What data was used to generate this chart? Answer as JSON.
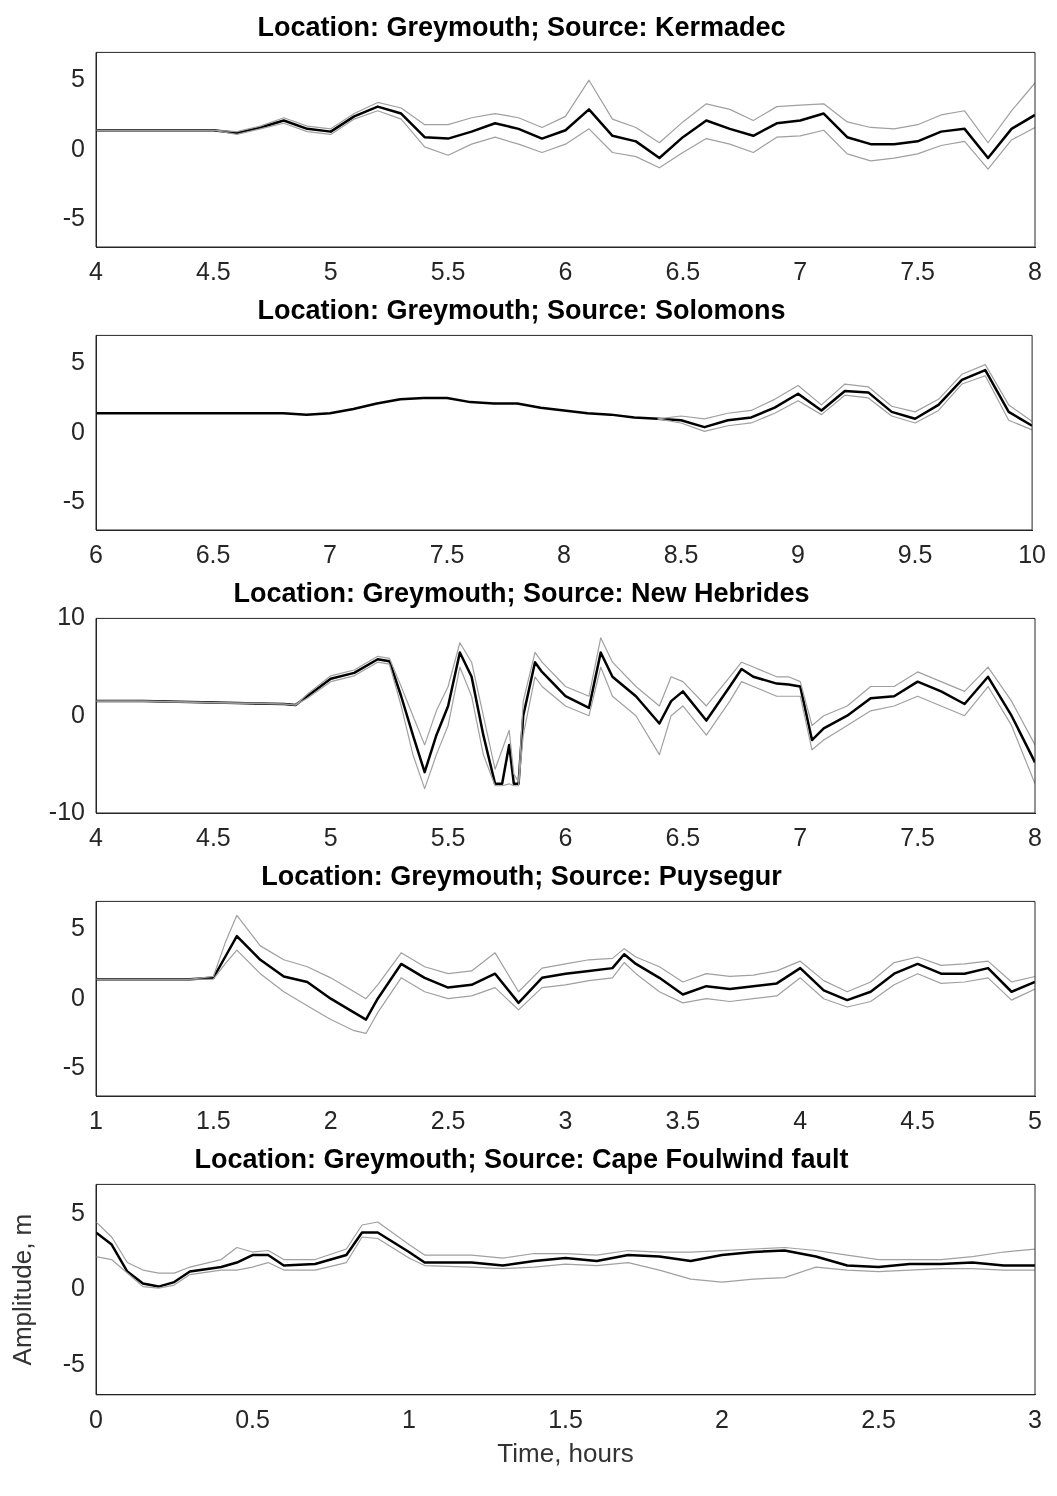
{
  "chart_data": [
    {
      "type": "line",
      "title": "Location: Greymouth; Source: Kermadec",
      "xlim": [
        4,
        8
      ],
      "xticks": [
        4,
        4.5,
        5,
        5.5,
        6,
        6.5,
        7,
        7.5,
        8
      ],
      "ylim": [
        -7,
        7
      ],
      "yticks": [
        -5,
        0,
        5
      ],
      "grid": false,
      "series": [
        {
          "color": "#a0a0a0",
          "x": [
            4,
            4.1,
            4.2,
            4.3,
            4.4,
            4.5,
            4.6,
            4.7,
            4.8,
            4.9,
            5,
            5.1,
            5.2,
            5.3,
            5.4,
            5.5,
            5.6,
            5.7,
            5.8,
            5.9,
            6,
            6.1,
            6.2,
            6.3,
            6.4,
            6.5,
            6.6,
            6.7,
            6.8,
            6.9,
            7,
            7.1,
            7.2,
            7.3,
            7.4,
            7.5,
            7.6,
            7.7,
            7.8,
            7.9,
            8
          ],
          "values": [
            1.4,
            1.4,
            1.4,
            1.4,
            1.4,
            1.4,
            1.3,
            1.7,
            2.3,
            1.7,
            1.5,
            2.6,
            3.4,
            3.0,
            1.8,
            1.8,
            2.3,
            2.6,
            2.3,
            1.6,
            2.4,
            5.0,
            2.2,
            1.6,
            0.5,
            2.0,
            3.3,
            2.9,
            2.1,
            3.1,
            3.2,
            3.3,
            2.0,
            1.6,
            1.5,
            1.8,
            2.5,
            2.8,
            0.5,
            2.8,
            4.8
          ]
        },
        {
          "color": "#a0a0a0",
          "x": [
            4,
            4.1,
            4.2,
            4.3,
            4.4,
            4.5,
            4.6,
            4.7,
            4.8,
            4.9,
            5,
            5.1,
            5.2,
            5.3,
            5.4,
            5.5,
            5.6,
            5.7,
            5.8,
            5.9,
            6,
            6.1,
            6.2,
            6.3,
            6.4,
            6.5,
            6.6,
            6.7,
            6.8,
            6.9,
            7,
            7.1,
            7.2,
            7.3,
            7.4,
            7.5,
            7.6,
            7.7,
            7.8,
            7.9,
            8
          ],
          "values": [
            1.4,
            1.4,
            1.4,
            1.4,
            1.4,
            1.4,
            1.1,
            1.5,
            1.9,
            1.3,
            1.1,
            2.2,
            2.8,
            2.2,
            0.2,
            -0.4,
            0.4,
            0.9,
            0.4,
            -0.2,
            0.4,
            1.5,
            -0.2,
            -0.5,
            -1.3,
            -0.2,
            0.8,
            0.4,
            -0.2,
            0.9,
            1.0,
            1.4,
            -0.3,
            -0.8,
            -0.6,
            -0.3,
            0.3,
            0.6,
            -1.4,
            0.7,
            1.6
          ]
        },
        {
          "color": "#000000",
          "x": [
            4,
            4.1,
            4.2,
            4.3,
            4.4,
            4.5,
            4.6,
            4.7,
            4.8,
            4.9,
            5,
            5.1,
            5.2,
            5.3,
            5.4,
            5.5,
            5.6,
            5.7,
            5.8,
            5.9,
            6,
            6.1,
            6.2,
            6.3,
            6.4,
            6.5,
            6.6,
            6.7,
            6.8,
            6.9,
            7,
            7.1,
            7.2,
            7.3,
            7.4,
            7.5,
            7.6,
            7.7,
            7.8,
            7.9,
            8
          ],
          "values": [
            1.4,
            1.4,
            1.4,
            1.4,
            1.4,
            1.4,
            1.2,
            1.6,
            2.1,
            1.5,
            1.3,
            2.4,
            3.1,
            2.6,
            0.9,
            0.8,
            1.3,
            1.9,
            1.5,
            0.8,
            1.4,
            2.9,
            1.0,
            0.6,
            -0.6,
            0.9,
            2.1,
            1.5,
            1.0,
            1.9,
            2.1,
            2.6,
            0.9,
            0.4,
            0.4,
            0.6,
            1.3,
            1.5,
            -0.6,
            1.5,
            2.5
          ]
        }
      ]
    },
    {
      "type": "line",
      "title": "Location: Greymouth; Source: Solomons",
      "xlim": [
        6,
        10
      ],
      "xticks": [
        6,
        6.5,
        7,
        7.5,
        8,
        8.5,
        9,
        9.5,
        10
      ],
      "ylim": [
        -7,
        7
      ],
      "yticks": [
        -5,
        0,
        5
      ],
      "grid": false,
      "series": [
        {
          "color": "#a0a0a0",
          "x": [
            8.4,
            8.5,
            8.6,
            8.7,
            8.8,
            8.9,
            9,
            9.1,
            9.2,
            9.3,
            9.4,
            9.5,
            9.6,
            9.7,
            9.8,
            9.9,
            10
          ],
          "values": [
            1.0,
            1.2,
            1.0,
            1.4,
            1.6,
            2.4,
            3.4,
            2.0,
            3.5,
            3.3,
            1.9,
            1.5,
            2.4,
            4.2,
            4.9,
            2.0,
            0.8
          ]
        },
        {
          "color": "#a0a0a0",
          "x": [
            8.4,
            8.5,
            8.6,
            8.7,
            8.8,
            8.9,
            9,
            9.1,
            9.2,
            9.3,
            9.4,
            9.5,
            9.6,
            9.7,
            9.8,
            9.9,
            10
          ],
          "values": [
            1.0,
            0.7,
            0.1,
            0.5,
            0.7,
            1.4,
            2.3,
            1.3,
            2.7,
            2.5,
            1.2,
            0.7,
            1.6,
            3.5,
            4.1,
            0.9,
            0.2
          ]
        },
        {
          "color": "#000000",
          "x": [
            6,
            6.1,
            6.2,
            6.3,
            6.4,
            6.5,
            6.6,
            6.7,
            6.8,
            6.9,
            7,
            7.1,
            7.2,
            7.3,
            7.4,
            7.5,
            7.6,
            7.7,
            7.8,
            7.9,
            8,
            8.1,
            8.2,
            8.3,
            8.4,
            8.5,
            8.6,
            8.7,
            8.8,
            8.9,
            9,
            9.1,
            9.2,
            9.3,
            9.4,
            9.5,
            9.6,
            9.7,
            9.8,
            9.9,
            10
          ],
          "values": [
            1.4,
            1.4,
            1.4,
            1.4,
            1.4,
            1.4,
            1.4,
            1.4,
            1.4,
            1.3,
            1.4,
            1.7,
            2.1,
            2.4,
            2.5,
            2.5,
            2.2,
            2.1,
            2.1,
            1.8,
            1.6,
            1.4,
            1.3,
            1.1,
            1.0,
            0.9,
            0.4,
            0.9,
            1.1,
            1.8,
            2.8,
            1.6,
            3.0,
            2.9,
            1.5,
            1.0,
            2.0,
            3.8,
            4.5,
            1.5,
            0.5
          ]
        }
      ]
    },
    {
      "type": "line",
      "title": "Location: Greymouth; Source: New Hebrides",
      "xlim": [
        4,
        8
      ],
      "xticks": [
        4,
        4.5,
        5,
        5.5,
        6,
        6.5,
        7,
        7.5,
        8
      ],
      "ylim": [
        -10,
        10
      ],
      "yticks": [
        -10,
        0,
        10
      ],
      "grid": false,
      "series": [
        {
          "color": "#a0a0a0",
          "x": [
            4,
            4.2,
            4.4,
            4.6,
            4.8,
            4.85,
            4.9,
            5,
            5.1,
            5.2,
            5.25,
            5.3,
            5.35,
            5.4,
            5.45,
            5.5,
            5.55,
            5.6,
            5.65,
            5.7,
            5.73,
            5.76,
            5.78,
            5.8,
            5.82,
            5.87,
            5.9,
            6,
            6.1,
            6.15,
            6.2,
            6.3,
            6.4,
            6.45,
            6.5,
            6.6,
            6.7,
            6.75,
            6.8,
            6.9,
            6.95,
            7,
            7.05,
            7.1,
            7.2,
            7.3,
            7.4,
            7.5,
            7.6,
            7.7,
            7.8,
            7.9,
            8
          ],
          "values": [
            1.5,
            1.5,
            1.4,
            1.3,
            1.2,
            1.1,
            2.2,
            4.1,
            4.7,
            6.1,
            5.9,
            3.0,
            0,
            -3.0,
            0.5,
            3.0,
            7.5,
            5.5,
            0,
            -5.5,
            -3.5,
            -1.5,
            -6.0,
            -6.8,
            1.5,
            6.5,
            5.5,
            3.0,
            2.0,
            8.0,
            5.5,
            3.0,
            1.0,
            4.0,
            3.5,
            1.0,
            4.0,
            5.5,
            5.0,
            4.0,
            4.0,
            3.5,
            -1.0,
            0,
            1.0,
            3.0,
            3.0,
            4.5,
            3.5,
            2.5,
            5.0,
            1.5,
            -3.0
          ]
        },
        {
          "color": "#a0a0a0",
          "x": [
            4,
            4.2,
            4.4,
            4.6,
            4.8,
            4.85,
            4.9,
            5,
            5.1,
            5.2,
            5.25,
            5.3,
            5.35,
            5.4,
            5.45,
            5.5,
            5.55,
            5.6,
            5.65,
            5.7,
            5.73,
            5.76,
            5.78,
            5.8,
            5.82,
            5.87,
            5.9,
            6,
            6.1,
            6.15,
            6.2,
            6.3,
            6.4,
            6.45,
            6.5,
            6.6,
            6.7,
            6.75,
            6.8,
            6.9,
            6.95,
            7,
            7.05,
            7.1,
            7.2,
            7.3,
            7.4,
            7.5,
            7.6,
            7.7,
            7.8,
            7.9,
            8
          ],
          "values": [
            1.5,
            1.5,
            1.4,
            1.3,
            1.2,
            1.1,
            1.8,
            3.5,
            4.1,
            5.5,
            5.3,
            1.0,
            -4.0,
            -7.5,
            -4.0,
            -1.0,
            5.0,
            2.0,
            -4.0,
            -7.2,
            -7.2,
            -7.0,
            -7.2,
            -7.2,
            -2.0,
            4.0,
            3.0,
            1.0,
            0,
            5.0,
            2.0,
            0,
            -4.0,
            0,
            1.0,
            -2.0,
            1.5,
            3.5,
            3.0,
            2.0,
            2.0,
            2.0,
            -3.5,
            -2.5,
            -1.0,
            0.5,
            1.0,
            2.0,
            1.0,
            0,
            3.0,
            -1.0,
            -7.0
          ]
        },
        {
          "color": "#000000",
          "x": [
            4,
            4.2,
            4.4,
            4.6,
            4.8,
            4.85,
            4.9,
            5,
            5.1,
            5.2,
            5.25,
            5.3,
            5.35,
            5.4,
            5.45,
            5.5,
            5.55,
            5.6,
            5.65,
            5.7,
            5.73,
            5.76,
            5.78,
            5.8,
            5.82,
            5.87,
            5.9,
            6,
            6.1,
            6.15,
            6.2,
            6.3,
            6.4,
            6.45,
            6.5,
            6.6,
            6.7,
            6.75,
            6.8,
            6.9,
            6.95,
            7,
            7.05,
            7.1,
            7.2,
            7.3,
            7.4,
            7.5,
            7.6,
            7.7,
            7.8,
            7.9,
            8
          ],
          "values": [
            1.5,
            1.5,
            1.4,
            1.3,
            1.2,
            1.1,
            2.0,
            3.8,
            4.4,
            5.8,
            5.6,
            2.0,
            -2.0,
            -5.8,
            -2.0,
            1.0,
            6.5,
            4.0,
            -2.0,
            -7.0,
            -7.0,
            -3.0,
            -7.0,
            -7.0,
            0,
            5.5,
            4.5,
            2.0,
            0.8,
            6.5,
            4.0,
            2.0,
            -0.8,
            1.5,
            2.5,
            -0.5,
            3.0,
            4.8,
            4.0,
            3.3,
            3.2,
            3.0,
            -2.5,
            -1.3,
            0,
            1.8,
            2.0,
            3.5,
            2.5,
            1.2,
            4.0,
            0,
            -4.8
          ]
        }
      ]
    },
    {
      "type": "line",
      "title": "Location: Greymouth; Source: Puysegur",
      "xlim": [
        1,
        5
      ],
      "xticks": [
        1,
        1.5,
        2,
        2.5,
        3,
        3.5,
        4,
        4.5,
        5
      ],
      "ylim": [
        -7,
        7
      ],
      "yticks": [
        -5,
        0,
        5
      ],
      "grid": false,
      "series": [
        {
          "color": "#a0a0a0",
          "x": [
            1,
            1.2,
            1.4,
            1.5,
            1.55,
            1.6,
            1.7,
            1.8,
            1.9,
            2,
            2.1,
            2.15,
            2.2,
            2.3,
            2.4,
            2.5,
            2.6,
            2.7,
            2.8,
            2.9,
            3,
            3.1,
            3.2,
            3.25,
            3.3,
            3.4,
            3.5,
            3.6,
            3.7,
            3.8,
            3.9,
            4,
            4.1,
            4.2,
            4.3,
            4.4,
            4.5,
            4.6,
            4.7,
            4.8,
            4.9,
            5
          ],
          "values": [
            1.4,
            1.4,
            1.4,
            1.6,
            4.0,
            6.0,
            3.8,
            2.8,
            2.3,
            1.5,
            0.5,
            0,
            1.0,
            3.3,
            2.3,
            1.8,
            2.0,
            3.3,
            0.5,
            2.2,
            2.5,
            2.8,
            2.9,
            3.6,
            3.0,
            2.3,
            1.2,
            1.8,
            1.6,
            1.7,
            2.0,
            2.7,
            1.3,
            0.5,
            1.2,
            2.6,
            3.0,
            2.4,
            2.5,
            2.7,
            1.2,
            1.6
          ]
        },
        {
          "color": "#a0a0a0",
          "x": [
            1,
            1.2,
            1.4,
            1.5,
            1.55,
            1.6,
            1.7,
            1.8,
            1.9,
            2,
            2.1,
            2.15,
            2.2,
            2.3,
            2.4,
            2.5,
            2.6,
            2.7,
            2.8,
            2.9,
            3,
            3.1,
            3.2,
            3.25,
            3.3,
            3.4,
            3.5,
            3.6,
            3.7,
            3.8,
            3.9,
            4,
            4.1,
            4.2,
            4.3,
            4.4,
            4.5,
            4.6,
            4.7,
            4.8,
            4.9,
            5
          ],
          "values": [
            1.4,
            1.4,
            1.4,
            1.4,
            2.5,
            3.5,
            1.8,
            0.5,
            -0.5,
            -1.5,
            -2.3,
            -2.5,
            -1.0,
            1.5,
            0.5,
            0,
            0.2,
            0.8,
            -0.8,
            0.8,
            1.0,
            1.3,
            1.5,
            2.6,
            1.8,
            0.5,
            -0.3,
            0,
            -0.2,
            0,
            0.2,
            1.5,
            0,
            -0.6,
            -0.2,
            1.0,
            1.8,
            1.1,
            1.2,
            1.5,
            -0.1,
            0.7
          ]
        },
        {
          "color": "#000000",
          "x": [
            1,
            1.2,
            1.4,
            1.5,
            1.55,
            1.6,
            1.7,
            1.8,
            1.9,
            2,
            2.1,
            2.15,
            2.2,
            2.3,
            2.4,
            2.5,
            2.6,
            2.7,
            2.8,
            2.9,
            3,
            3.1,
            3.2,
            3.25,
            3.3,
            3.4,
            3.5,
            3.6,
            3.7,
            3.8,
            3.9,
            4,
            4.1,
            4.2,
            4.3,
            4.4,
            4.5,
            4.6,
            4.7,
            4.8,
            4.9,
            5
          ],
          "values": [
            1.4,
            1.4,
            1.4,
            1.5,
            3.0,
            4.5,
            2.8,
            1.6,
            1.2,
            0,
            -1.0,
            -1.5,
            0,
            2.5,
            1.5,
            0.8,
            1.0,
            1.8,
            -0.3,
            1.5,
            1.8,
            2.0,
            2.2,
            3.2,
            2.5,
            1.5,
            0.3,
            0.9,
            0.7,
            0.9,
            1.1,
            2.2,
            0.6,
            -0.1,
            0.5,
            1.8,
            2.5,
            1.8,
            1.8,
            2.2,
            0.5,
            1.2
          ]
        }
      ]
    },
    {
      "type": "line",
      "title": "Location: Greymouth; Source: Cape Foulwind fault",
      "xlabel": "Time, hours",
      "ylabel": "Amplitude, m",
      "xlim": [
        0,
        3
      ],
      "xticks": [
        0,
        0.5,
        1,
        1.5,
        2,
        2.5,
        3
      ],
      "ylim": [
        -7,
        7
      ],
      "yticks": [
        -5,
        0,
        5
      ],
      "grid": false,
      "series": [
        {
          "color": "#a0a0a0",
          "x": [
            0,
            0.05,
            0.1,
            0.15,
            0.2,
            0.25,
            0.3,
            0.4,
            0.45,
            0.5,
            0.55,
            0.6,
            0.7,
            0.8,
            0.85,
            0.9,
            1,
            1.05,
            1.2,
            1.3,
            1.4,
            1.5,
            1.6,
            1.7,
            1.8,
            1.9,
            2,
            2.1,
            2.2,
            2.3,
            2.4,
            2.5,
            2.6,
            2.7,
            2.8,
            2.9,
            3
          ],
          "values": [
            4.5,
            3.5,
            1.8,
            1.3,
            1.1,
            1.1,
            1.5,
            2.0,
            2.8,
            2.5,
            2.6,
            2.0,
            2.0,
            2.7,
            4.3,
            4.5,
            3.0,
            2.3,
            2.3,
            2.1,
            2.4,
            2.4,
            2.3,
            2.6,
            2.5,
            2.5,
            2.6,
            2.7,
            2.8,
            2.6,
            2.3,
            2.0,
            2.0,
            2.0,
            2.2,
            2.5,
            2.7
          ]
        },
        {
          "color": "#a0a0a0",
          "x": [
            0,
            0.05,
            0.1,
            0.15,
            0.2,
            0.25,
            0.3,
            0.4,
            0.45,
            0.5,
            0.55,
            0.6,
            0.7,
            0.8,
            0.85,
            0.9,
            1,
            1.05,
            1.2,
            1.3,
            1.4,
            1.5,
            1.6,
            1.7,
            1.8,
            1.9,
            2,
            2.1,
            2.2,
            2.3,
            2.4,
            2.5,
            2.6,
            2.7,
            2.8,
            2.9,
            3
          ],
          "values": [
            2.2,
            2.0,
            1.1,
            0.2,
            0.1,
            0.3,
            1.0,
            1.3,
            1.3,
            1.5,
            1.8,
            1.3,
            1.3,
            1.8,
            3.5,
            3.4,
            2.1,
            1.6,
            1.5,
            1.4,
            1.5,
            1.7,
            1.6,
            1.8,
            1.3,
            0.7,
            0.5,
            0.7,
            0.8,
            1.5,
            1.3,
            1.2,
            1.3,
            1.4,
            1.4,
            1.3,
            1.3
          ]
        },
        {
          "color": "#000000",
          "x": [
            0,
            0.05,
            0.1,
            0.15,
            0.2,
            0.25,
            0.3,
            0.4,
            0.45,
            0.5,
            0.55,
            0.6,
            0.7,
            0.8,
            0.85,
            0.9,
            1,
            1.05,
            1.2,
            1.3,
            1.4,
            1.5,
            1.6,
            1.7,
            1.8,
            1.9,
            2,
            2.1,
            2.2,
            2.3,
            2.4,
            2.5,
            2.6,
            2.7,
            2.8,
            2.9,
            3
          ],
          "values": [
            3.8,
            3.0,
            1.2,
            0.4,
            0.2,
            0.5,
            1.2,
            1.5,
            1.8,
            2.3,
            2.3,
            1.6,
            1.7,
            2.3,
            3.8,
            3.8,
            2.5,
            1.8,
            1.8,
            1.6,
            1.9,
            2.1,
            1.9,
            2.3,
            2.2,
            1.9,
            2.3,
            2.5,
            2.6,
            2.2,
            1.6,
            1.5,
            1.7,
            1.7,
            1.8,
            1.6,
            1.6
          ]
        }
      ]
    }
  ]
}
